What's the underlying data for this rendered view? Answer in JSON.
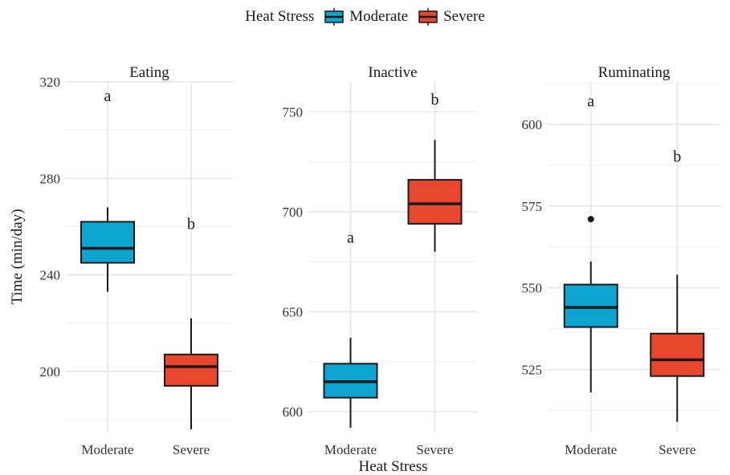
{
  "legend": {
    "title": "Heat Stress",
    "items": [
      {
        "label": "Moderate",
        "color": "#0fa3d2"
      },
      {
        "label": "Severe",
        "color": "#e9472d"
      }
    ]
  },
  "chart_data": {
    "type": "boxplot",
    "xlabel": "Heat Stress",
    "ylabel": "Time (min/day)",
    "categories": [
      "Moderate",
      "Severe"
    ],
    "facets": [
      {
        "title": "Eating",
        "ylim": [
          175,
          320
        ],
        "yticks": [
          200,
          240,
          280,
          320
        ],
        "minor_yticks": [
          180,
          220,
          260,
          300
        ],
        "boxes": [
          {
            "group": "Moderate",
            "min": 233,
            "q1": 245,
            "median": 251,
            "q3": 262,
            "max": 268,
            "outliers": [],
            "letter": "a",
            "letter_y": 314
          },
          {
            "group": "Severe",
            "min": 176,
            "q1": 194,
            "median": 202,
            "q3": 207,
            "max": 222,
            "outliers": [],
            "letter": "b",
            "letter_y": 261
          }
        ]
      },
      {
        "title": "Inactive",
        "ylim": [
          590,
          765
        ],
        "yticks": [
          600,
          650,
          700,
          750
        ],
        "minor_yticks": [
          625,
          675,
          725
        ],
        "boxes": [
          {
            "group": "Moderate",
            "min": 592,
            "q1": 607,
            "median": 615,
            "q3": 624,
            "max": 637,
            "outliers": [],
            "letter": "a",
            "letter_y": 687
          },
          {
            "group": "Severe",
            "min": 680,
            "q1": 694,
            "median": 704,
            "q3": 716,
            "max": 736,
            "outliers": [],
            "letter": "b",
            "letter_y": 756
          }
        ]
      },
      {
        "title": "Ruminating",
        "ylim": [
          506,
          613
        ],
        "yticks": [
          525,
          550,
          575,
          600
        ],
        "minor_yticks": [
          512.5,
          537.5,
          562.5,
          587.5,
          612.5
        ],
        "boxes": [
          {
            "group": "Moderate",
            "min": 518,
            "q1": 538,
            "median": 544,
            "q3": 551,
            "max": 558,
            "outliers": [
              571
            ],
            "letter": "a",
            "letter_y": 607
          },
          {
            "group": "Severe",
            "min": 509,
            "q1": 523,
            "median": 528,
            "q3": 536,
            "max": 554,
            "outliers": [],
            "letter": "b",
            "letter_y": 590
          }
        ]
      }
    ]
  }
}
